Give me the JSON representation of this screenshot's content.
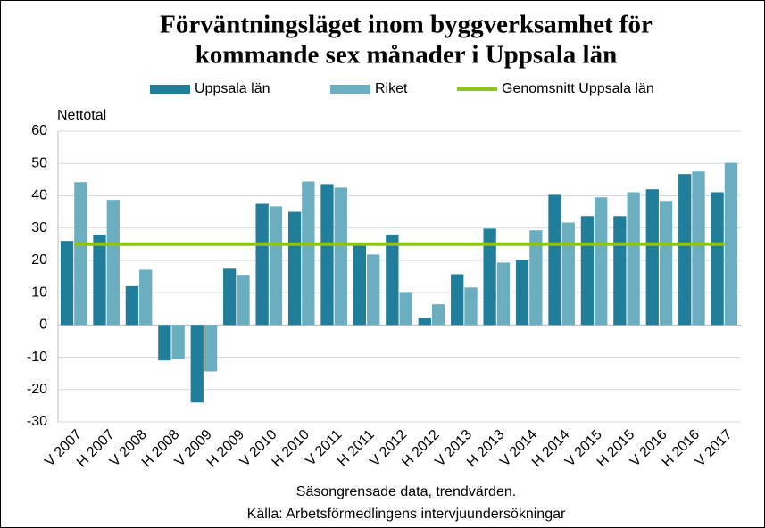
{
  "chart_data": {
    "type": "bar",
    "title": [
      "Förväntningsläget inom byggverksamhet för",
      "kommande sex månader i Uppsala län"
    ],
    "y_label": "Nettotal",
    "notes": [
      "Säsongrensade data, trendvärden.",
      "Källa: Arbetsförmedlingens  intervjuundersökningar"
    ],
    "categories": [
      "V 2007",
      "H 2007",
      "V 2008",
      "H 2008",
      "V 2009",
      "H 2009",
      "V 2010",
      "H 2010",
      "V 2011",
      "H 2011",
      "V 2012",
      "H 2012",
      "V 2013",
      "H 2013",
      "V 2014",
      "H 2014",
      "V 2015",
      "H 2015",
      "V 2016",
      "H 2016",
      "V 2017"
    ],
    "series": [
      {
        "name": "Uppsala län",
        "type": "bar",
        "color": "#217e9b",
        "values": [
          26,
          28,
          12,
          -11,
          -24,
          17.4,
          37.5,
          35,
          43.6,
          24.6,
          28,
          2.2,
          15.7,
          29.8,
          20.2,
          40.3,
          33.7,
          33.7,
          42,
          46.7,
          41.1
        ]
      },
      {
        "name": "Riket",
        "type": "bar",
        "color": "#6aaec0",
        "values": [
          44.2,
          38.7,
          17.1,
          -10.5,
          -14.4,
          15.5,
          36.7,
          44.4,
          42.5,
          21.8,
          10.2,
          6.4,
          11.6,
          19.3,
          29.3,
          31.7,
          39.5,
          41.1,
          38.4,
          47.5,
          50.2
        ]
      },
      {
        "name": "Genomsnitt Uppsala län",
        "type": "line",
        "color": "#8dc21f",
        "values": [
          25,
          25,
          25,
          25,
          25,
          25,
          25,
          25,
          25,
          25,
          25,
          25,
          25,
          25,
          25,
          25,
          25,
          25,
          25,
          25,
          25
        ]
      }
    ],
    "ylim": [
      -30,
      60
    ],
    "yticks": [
      -30,
      -20,
      -10,
      0,
      10,
      20,
      30,
      40,
      50,
      60
    ],
    "grid": true
  }
}
